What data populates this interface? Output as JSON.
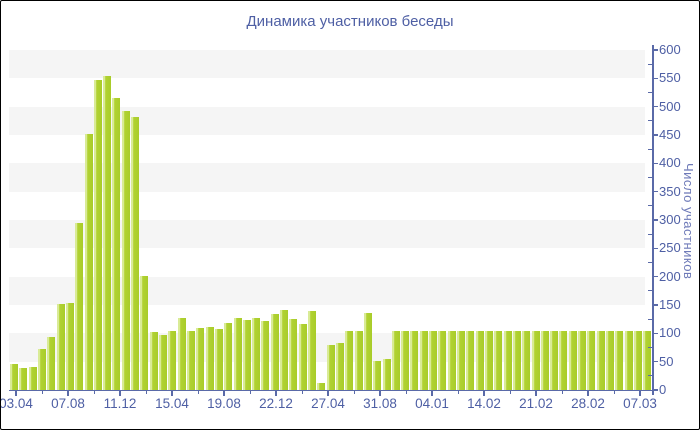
{
  "chart_data": {
    "type": "bar",
    "title": "Динамика участников беседы",
    "ylabel": "Число участников",
    "xlabel": "",
    "ylim": [
      0,
      600
    ],
    "ytick_step": 50,
    "ytick_labels": [
      "0",
      "50",
      "100",
      "150",
      "200",
      "250",
      "300",
      "350",
      "400",
      "450",
      "500",
      "550",
      "600"
    ],
    "yaxis_side": "right",
    "grid": "alternating horizontal bands every 50 units",
    "legend": "none",
    "x_tick_labels": [
      "03.04",
      "07.08",
      "11.12",
      "15.04",
      "19.08",
      "22.12",
      "27.04",
      "31.08",
      "04.01",
      "14.02",
      "21.02",
      "28.02",
      "07.03"
    ],
    "values": [
      46,
      39,
      40,
      73,
      94,
      152,
      154,
      294,
      451,
      547,
      555,
      515,
      493,
      482,
      202,
      102,
      98,
      105,
      127,
      105,
      110,
      112,
      107,
      119,
      127,
      124,
      128,
      121,
      134,
      141,
      126,
      117,
      139,
      12,
      80,
      83,
      105,
      105,
      136,
      51,
      55,
      105,
      105,
      105,
      105,
      105,
      105,
      105,
      105,
      105,
      105,
      105,
      105,
      105,
      105,
      105,
      105,
      105,
      105,
      105,
      105,
      105,
      105,
      105,
      105,
      105,
      105,
      105,
      105
    ],
    "colors": {
      "bar": "#b2d233",
      "bar_highlight": "#d9eb96",
      "bar_shade": "#a8cc29",
      "axis": "#5a6aa8",
      "tick_label": "#4e5fa4",
      "yaxis_title": "#6e7ab8",
      "band": "#f5f5f5",
      "background": "#ffffff",
      "border": "#000000"
    }
  }
}
